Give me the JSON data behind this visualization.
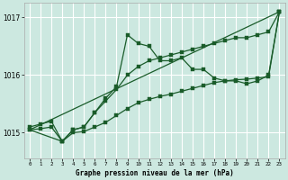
{
  "xlabel": "Graphe pression niveau de la mer (hPa)",
  "xlim": [
    -0.5,
    23.5
  ],
  "ylim": [
    1014.55,
    1017.25
  ],
  "yticks": [
    1015,
    1016,
    1017
  ],
  "xticks": [
    0,
    1,
    2,
    3,
    4,
    5,
    6,
    7,
    8,
    9,
    10,
    11,
    12,
    13,
    14,
    15,
    16,
    17,
    18,
    19,
    20,
    21,
    22,
    23
  ],
  "background_color": "#cce8e0",
  "plot_bg_color": "#cce8e0",
  "grid_color": "#ffffff",
  "line_color": "#1a5c2a",
  "series1": {
    "x": [
      0,
      1,
      2,
      3,
      4,
      5,
      6,
      7,
      8,
      9,
      10,
      11,
      12,
      13,
      14,
      15,
      16,
      17,
      18,
      19,
      20,
      21,
      22,
      23
    ],
    "y": [
      1015.1,
      1015.15,
      1015.2,
      1014.85,
      1015.05,
      1015.1,
      1015.35,
      1015.6,
      1015.8,
      1016.7,
      1016.55,
      1016.5,
      1016.25,
      1016.25,
      1016.3,
      1016.1,
      1016.1,
      1015.95,
      1015.9,
      1015.9,
      1015.85,
      1015.9,
      1016.0,
      1017.1
    ]
  },
  "series2": {
    "x": [
      0,
      3,
      4,
      5,
      6,
      7,
      8,
      9,
      10,
      11,
      12,
      13,
      14,
      15,
      16,
      17,
      18,
      19,
      20,
      21,
      22,
      23
    ],
    "y": [
      1015.05,
      1014.85,
      1015.05,
      1015.1,
      1015.35,
      1015.55,
      1015.75,
      1016.0,
      1016.15,
      1016.25,
      1016.3,
      1016.35,
      1016.4,
      1016.45,
      1016.5,
      1016.55,
      1016.6,
      1016.65,
      1016.65,
      1016.7,
      1016.75,
      1017.1
    ]
  },
  "series3": {
    "x": [
      0,
      23
    ],
    "y": [
      1015.05,
      1017.1
    ]
  },
  "series4": {
    "x": [
      0,
      1,
      2,
      3,
      4,
      5,
      6,
      7,
      8,
      9,
      10,
      11,
      12,
      13,
      14,
      15,
      16,
      17,
      18,
      19,
      20,
      21,
      22,
      23
    ],
    "y": [
      1015.05,
      1015.07,
      1015.1,
      1014.85,
      1015.0,
      1015.02,
      1015.1,
      1015.18,
      1015.3,
      1015.42,
      1015.52,
      1015.58,
      1015.63,
      1015.67,
      1015.72,
      1015.77,
      1015.82,
      1015.87,
      1015.9,
      1015.92,
      1015.93,
      1015.95,
      1015.97,
      1017.1
    ]
  }
}
